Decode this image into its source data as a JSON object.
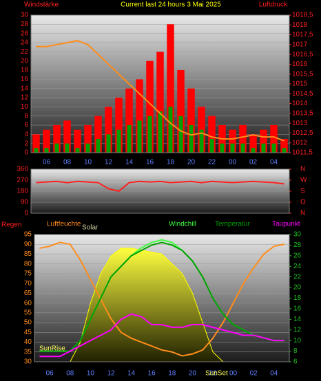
{
  "chart_data": [
    {
      "type": "combo",
      "title": "Current last 24 hours 3 Mai 2025",
      "categories": [
        null,
        "06",
        null,
        "08",
        null,
        "10",
        null,
        "12",
        null,
        "14",
        null,
        "16",
        null,
        "18",
        null,
        "20",
        null,
        "22",
        null,
        "00",
        null,
        "02",
        null,
        "04",
        null
      ],
      "ylim": [
        0,
        30
      ],
      "yticks": [
        0,
        2,
        4,
        6,
        8,
        10,
        12,
        14,
        16,
        18,
        20,
        22,
        24,
        26,
        28,
        30
      ],
      "y2lim": [
        1011.5,
        1018.5
      ],
      "y2ticks": [
        {
          "value": 1011.5,
          "label": "1011,5"
        },
        1012,
        {
          "value": 1012.5,
          "label": "1012,5"
        },
        1013,
        {
          "value": 1013.5,
          "label": "1013,5"
        },
        1014,
        {
          "value": 1014.5,
          "label": "1014,5"
        },
        1015,
        {
          "value": 1015.5,
          "label": "1015,5"
        },
        1016,
        {
          "value": 1016.5,
          "label": "1016,5"
        },
        1017,
        {
          "value": 1017.5,
          "label": "1017,5"
        },
        1018,
        {
          "value": 1018.5,
          "label": "1018,5"
        }
      ],
      "grid": true,
      "series": [
        {
          "name": "Windstärke",
          "type": "bar",
          "color": "#ff0000",
          "values": [
            4,
            5,
            6,
            7,
            5,
            6,
            8,
            10,
            12,
            14,
            16,
            20,
            22,
            28,
            18,
            14,
            10,
            8,
            6,
            5,
            6,
            4,
            5,
            6,
            3
          ]
        },
        {
          "type": "bar",
          "color": "#00a000",
          "values": [
            1,
            1,
            2,
            2,
            1,
            2,
            3,
            4,
            5,
            6,
            7,
            8,
            9,
            10,
            8,
            6,
            5,
            3,
            2,
            2,
            2,
            1,
            2,
            2,
            1
          ]
        },
        {
          "name": "Luftdruck",
          "type": "line",
          "axis": "y2",
          "color": "#ff8c1a",
          "values": [
            1016.9,
            1016.9,
            1017.0,
            1017.1,
            1017.2,
            1017.0,
            1016.5,
            1016.0,
            1015.5,
            1015.0,
            1014.5,
            1014.0,
            1013.5,
            1013.0,
            1012.6,
            1012.4,
            1012.5,
            1012.3,
            1012.2,
            1012.2,
            1012.3,
            1012.4,
            1012.3,
            1012.3,
            1012.1
          ]
        }
      ]
    },
    {
      "type": "combo",
      "categories": [
        null,
        null,
        null,
        null,
        null,
        null,
        null,
        null,
        null,
        null,
        null,
        null,
        null,
        null,
        null,
        null,
        null,
        null,
        null,
        null,
        null,
        null,
        null,
        null,
        null
      ],
      "ylim": [
        0,
        360
      ],
      "yticks": [
        0,
        90,
        180,
        270,
        360
      ],
      "y2lim": [
        0,
        360
      ],
      "y2ticks": [
        {
          "value": 360,
          "label": "N"
        },
        {
          "value": 270,
          "label": "W"
        },
        {
          "value": 180,
          "label": "S"
        },
        {
          "value": 90,
          "label": "O"
        },
        {
          "value": 0,
          "label": "N"
        }
      ],
      "grid": true,
      "series": [
        {
          "type": "line",
          "color": "#ff2020",
          "values": [
            250,
            255,
            260,
            250,
            260,
            255,
            250,
            200,
            180,
            250,
            260,
            255,
            260,
            250,
            255,
            260,
            250,
            260,
            255,
            250,
            255,
            260,
            255,
            250,
            240
          ]
        }
      ]
    },
    {
      "type": "combo",
      "rain_label": "Regen",
      "annotations": [
        "SunRise",
        "SunSet"
      ],
      "categories": [
        null,
        "06",
        null,
        "08",
        null,
        "10",
        null,
        "12",
        null,
        "14",
        null,
        "16",
        null,
        "18",
        null,
        "20",
        null,
        "22",
        null,
        "00",
        null,
        "02",
        null,
        "04",
        null
      ],
      "ylim": [
        30,
        95
      ],
      "yticks": [
        30,
        35,
        40,
        45,
        50,
        55,
        60,
        65,
        70,
        75,
        80,
        85,
        90,
        95
      ],
      "y2lim": [
        6,
        30
      ],
      "y2ticks": [
        6,
        8,
        10,
        12,
        14,
        16,
        18,
        20,
        22,
        24,
        26,
        28,
        30
      ],
      "grid": true,
      "series": [
        {
          "name": "Solar",
          "type": "area",
          "color": "#ffff00",
          "values": [
            30,
            30,
            30,
            30,
            40,
            60,
            75,
            84,
            88,
            88,
            87,
            86,
            85,
            80,
            75,
            65,
            50,
            35,
            30,
            30,
            30,
            30,
            30,
            30,
            30
          ]
        },
        {
          "name": "Luftfeuchte",
          "type": "line",
          "color": "#ff8c1a",
          "values": [
            88,
            89,
            91,
            90,
            82,
            72,
            62,
            52,
            45,
            42,
            40,
            38,
            36,
            35,
            33,
            34,
            36,
            42,
            50,
            60,
            70,
            78,
            85,
            89,
            90
          ]
        },
        {
          "name": "Windchill",
          "type": "line",
          "axis": "y2",
          "color": "#40ff40",
          "values": [
            8,
            8,
            8,
            8,
            10,
            14,
            18,
            22,
            24,
            26,
            27.5,
            28.5,
            29,
            28.5,
            27,
            25,
            22,
            18,
            15,
            13,
            12,
            11,
            10.5,
            10,
            10
          ]
        },
        {
          "name": "Temperatur",
          "type": "line",
          "axis": "y2",
          "color": "#00a000",
          "values": [
            8,
            8,
            8,
            8,
            10,
            14,
            18,
            22,
            24,
            26,
            27,
            28,
            28.5,
            28,
            27,
            25,
            22,
            18,
            15,
            13,
            12,
            11,
            10.5,
            10,
            10
          ]
        },
        {
          "name": "Taupunkt",
          "type": "line",
          "axis": "y2",
          "color": "#ff00ff",
          "values": [
            7,
            7,
            7,
            8,
            9,
            10,
            11,
            12,
            14,
            15,
            14.5,
            13,
            13,
            12.5,
            12.5,
            13,
            13,
            12.5,
            12,
            11.5,
            11,
            11,
            10.5,
            10,
            10
          ]
        }
      ]
    }
  ]
}
